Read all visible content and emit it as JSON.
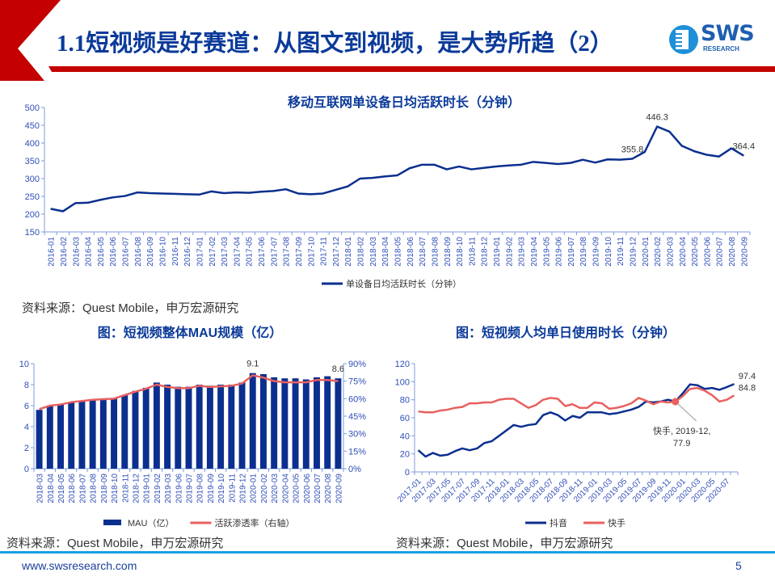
{
  "header": {
    "title": "1.1短视频是好赛道：从图文到视频，是大势所趋（2）",
    "logo_text": "SWS",
    "logo_subtext": "RESEARCH"
  },
  "colors": {
    "navy": "#0b2f8f",
    "red": "#e8605f",
    "header_red": "#c40000",
    "rule": "#1aa0e0"
  },
  "sources": {
    "top": "资料来源：Quest Mobile，申万宏源研究",
    "bottom_left": "资料来源：Quest Mobile，申万宏源研究",
    "bottom_right": "资料来源：Quest Mobile，申万宏源研究"
  },
  "footer": {
    "url": "www.swsresearch.com",
    "page": "5"
  },
  "chart_data": [
    {
      "type": "line",
      "title": "移动互联网单设备日均活跃时长（分钟）",
      "ylim": [
        150,
        500
      ],
      "yticks": [
        150,
        200,
        250,
        300,
        350,
        400,
        450,
        500
      ],
      "categories": [
        "2016-01",
        "2016-02",
        "2016-03",
        "2016-04",
        "2016-05",
        "2016-06",
        "2016-07",
        "2016-08",
        "2016-09",
        "2016-10",
        "2016-11",
        "2016-12",
        "2017-01",
        "2017-02",
        "2017-03",
        "2017-04",
        "2017-05",
        "2017-06",
        "2017-07",
        "2017-08",
        "2017-09",
        "2017-10",
        "2017-11",
        "2017-12",
        "2018-01",
        "2018-02",
        "2018-03",
        "2018-04",
        "2018-05",
        "2018-06",
        "2018-07",
        "2018-08",
        "2018-09",
        "2018-10",
        "2018-11",
        "2018-12",
        "2019-01",
        "2019-02",
        "2019-03",
        "2019-04",
        "2019-05",
        "2019-06",
        "2019-07",
        "2019-08",
        "2019-09",
        "2019-10",
        "2019-11",
        "2019-12",
        "2020-01",
        "2020-02",
        "2020-03",
        "2020-04",
        "2020-05",
        "2020-06",
        "2020-07",
        "2020-08",
        "2020-09"
      ],
      "series": [
        {
          "name": "单设备日均活跃时长（分钟）",
          "color": "#0b2f8f",
          "values": [
            215,
            208,
            231,
            232,
            240,
            247,
            251,
            261,
            259,
            258,
            257,
            256,
            255,
            264,
            259,
            261,
            260,
            263,
            265,
            270,
            258,
            256,
            258,
            268,
            278,
            300,
            302,
            306,
            309,
            329,
            339,
            339,
            326,
            334,
            326,
            330,
            334,
            337,
            339,
            347,
            344,
            341,
            344,
            353,
            345,
            354,
            353,
            355.8,
            375,
            446.3,
            432,
            392,
            377,
            367,
            362,
            385,
            364.4
          ]
        }
      ],
      "data_labels": [
        {
          "index": 47,
          "text": "355.8"
        },
        {
          "index": 49,
          "text": "446.3"
        },
        {
          "index": 56,
          "text": "364.4"
        }
      ],
      "legend": "bottom"
    },
    {
      "type": "bar+line",
      "title": "图：短视频整体MAU规模（亿）",
      "ylim": [
        0,
        10
      ],
      "yticks": [
        0,
        2,
        4,
        6,
        8,
        10
      ],
      "y2lim": [
        0,
        90
      ],
      "y2ticks": [
        "0%",
        "15%",
        "30%",
        "45%",
        "60%",
        "75%",
        "90%"
      ],
      "categories": [
        "2018-03",
        "2018-04",
        "2018-05",
        "2018-06",
        "2018-07",
        "2018-08",
        "2018-09",
        "2018-10",
        "2018-11",
        "2018-12",
        "2019-01",
        "2019-02",
        "2019-03",
        "2019-06",
        "2019-07",
        "2019-08",
        "2019-09",
        "2019-10",
        "2019-11",
        "2019-12",
        "2020-01",
        "2020-02",
        "2020-03",
        "2020-04",
        "2020-05",
        "2020-06",
        "2020-07",
        "2020-08",
        "2020-09"
      ],
      "series": [
        {
          "name": "MAU（亿）",
          "kind": "bar",
          "color": "#0b2f8f",
          "values": [
            5.6,
            6.0,
            6.1,
            6.3,
            6.4,
            6.5,
            6.6,
            6.7,
            7.0,
            7.4,
            7.7,
            8.2,
            8.0,
            7.8,
            7.8,
            8.0,
            7.9,
            8.0,
            8.0,
            8.2,
            9.1,
            9.0,
            8.7,
            8.6,
            8.6,
            8.5,
            8.7,
            8.8,
            8.6
          ]
        },
        {
          "name": "活跃渗透率（右轴）",
          "kind": "line",
          "axis": "right",
          "unit": "%",
          "color": "#e8605f",
          "values": [
            51,
            54,
            55,
            57,
            58,
            59,
            59.5,
            60,
            63,
            66,
            68.5,
            72,
            70,
            69,
            69,
            71,
            70,
            70.5,
            71,
            73,
            80,
            78,
            75,
            74,
            74,
            74,
            76,
            76,
            75
          ]
        }
      ],
      "data_labels": [
        {
          "index": 20,
          "text": "9.1"
        },
        {
          "index": 28,
          "text": "8.6"
        }
      ],
      "legend": "bottom"
    },
    {
      "type": "line",
      "title": "图：短视频人均单日使用时长（分钟）",
      "ylim": [
        0,
        120
      ],
      "yticks": [
        0,
        20,
        40,
        60,
        80,
        100,
        120
      ],
      "categories": [
        "2017-01",
        "2017-02",
        "2017-03",
        "2017-04",
        "2017-05",
        "2017-06",
        "2017-07",
        "2017-08",
        "2017-09",
        "2017-10",
        "2017-11",
        "2017-12",
        "2018-01",
        "2018-02",
        "2018-03",
        "2018-04",
        "2018-05",
        "2018-06",
        "2018-07",
        "2018-08",
        "2018-09",
        "2018-10",
        "2018-11",
        "2018-12",
        "2019-01",
        "2019-02",
        "2019-03",
        "2019-04",
        "2019-05",
        "2019-06",
        "2019-07",
        "2019-08",
        "2019-09",
        "2019-10",
        "2019-11",
        "2019-12",
        "2020-01",
        "2020-02",
        "2020-03",
        "2020-04",
        "2020-05",
        "2020-06",
        "2020-07",
        "2020-08"
      ],
      "series": [
        {
          "name": "抖音",
          "color": "#0b2f8f",
          "values": [
            24,
            17,
            21,
            18,
            19,
            23,
            26,
            24,
            26,
            32,
            34,
            40,
            46,
            52,
            50,
            52,
            53,
            63,
            66,
            63,
            57,
            62,
            60,
            66,
            66,
            66,
            64,
            65,
            67,
            69,
            72,
            78,
            77,
            78,
            80,
            78,
            87,
            97,
            96,
            92,
            93,
            91,
            94,
            97.4
          ]
        },
        {
          "name": "快手",
          "color": "#e8605f",
          "values": [
            67,
            66,
            66,
            68,
            69,
            71,
            72,
            76,
            76,
            77,
            77,
            80,
            81,
            81,
            76,
            71,
            74,
            80,
            82,
            81,
            73,
            75,
            71,
            71,
            77,
            76,
            70,
            71,
            73,
            76,
            82,
            79,
            75,
            78,
            77,
            77.9,
            84,
            92,
            93,
            90,
            85,
            78,
            80,
            84.8
          ]
        }
      ],
      "data_labels": [
        {
          "series": 0,
          "index": 43,
          "text": "97.4"
        },
        {
          "series": 1,
          "index": 43,
          "text": "84.8"
        }
      ],
      "annotation": {
        "series": 1,
        "index": 35,
        "text_line1": "快手, 2019-12,",
        "text_line2": "77.9"
      },
      "legend": "bottom"
    }
  ]
}
